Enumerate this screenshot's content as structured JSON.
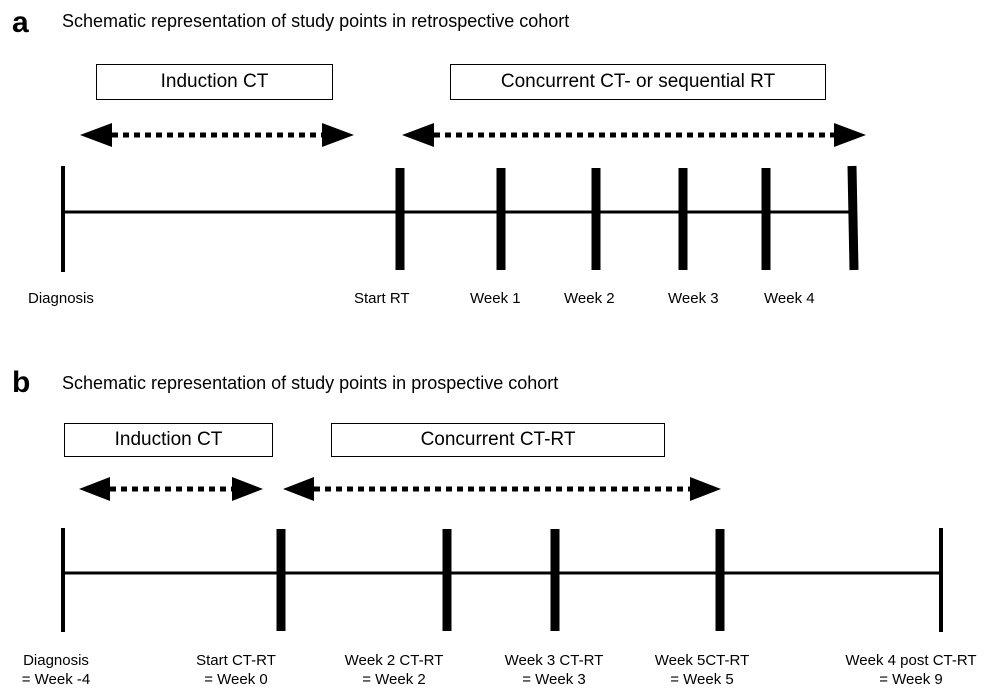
{
  "panel_a": {
    "letter": "a",
    "title": "Schematic representation of study points in retrospective cohort",
    "box_left": "Induction CT",
    "box_right": "Concurrent CT- or sequential RT",
    "labels": [
      "Diagnosis",
      "Start RT",
      "Week 1",
      "Week 2",
      "Week 3",
      "Week 4"
    ]
  },
  "panel_b": {
    "letter": "b",
    "title": "Schematic representation of study points in prospective cohort",
    "box_left": "Induction CT",
    "box_right": "Concurrent CT-RT",
    "labels": [
      {
        "line1": "Diagnosis",
        "line2": "= Week -4"
      },
      {
        "line1": "Start CT-RT",
        "line2": "= Week 0"
      },
      {
        "line1": "Week 2 CT-RT",
        "line2": "= Week 2"
      },
      {
        "line1": "Week 3 CT-RT",
        "line2": "= Week 3"
      },
      {
        "line1": "Week 5CT-RT",
        "line2": "= Week 5"
      },
      {
        "line1": "Week 4 post CT-RT",
        "line2": "= Week 9"
      }
    ]
  },
  "colors": {
    "line": "#000000",
    "background": "#ffffff"
  }
}
